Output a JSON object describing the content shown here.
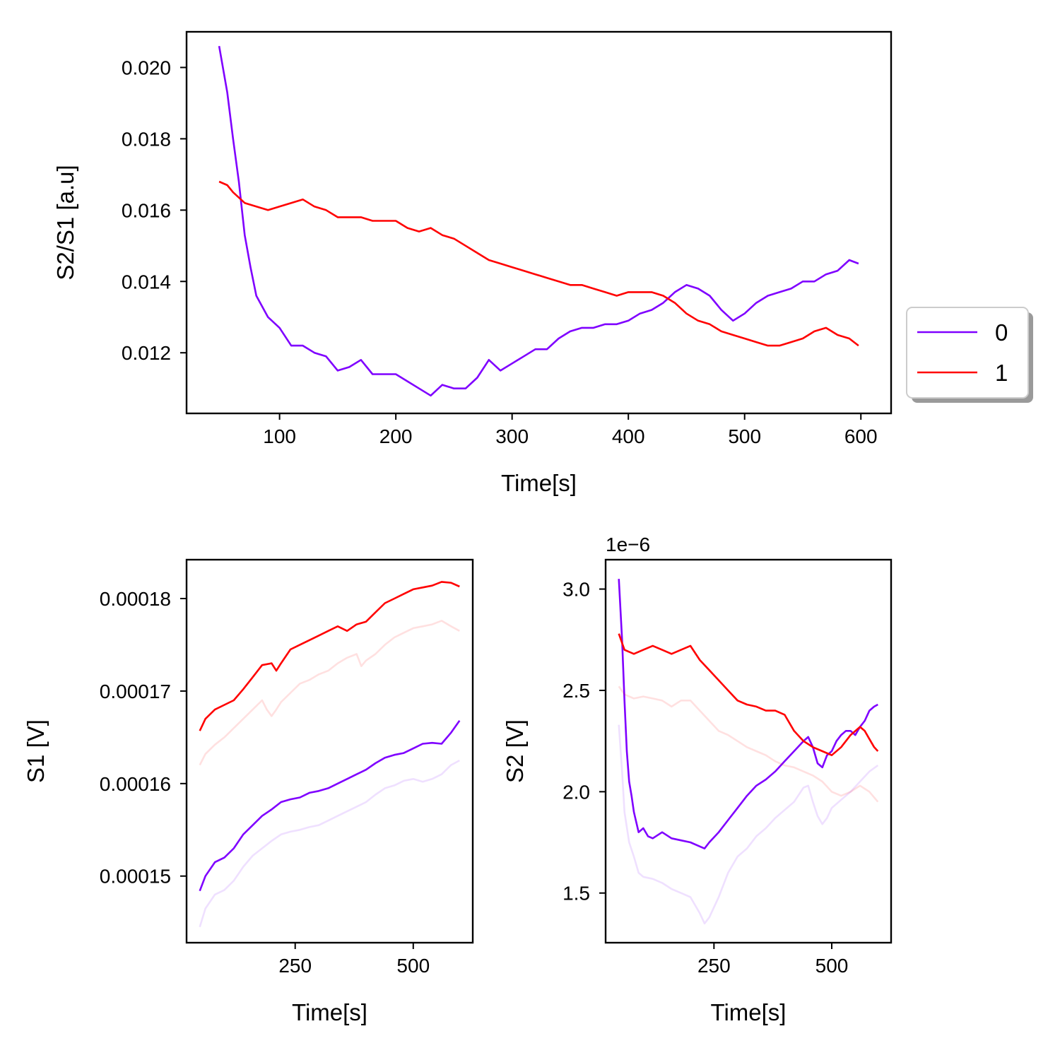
{
  "colors": {
    "series_0": "#7f00ff",
    "series_1": "#ff0000"
  },
  "legend": {
    "placement": "right, outside top panel",
    "entries": [
      "0",
      "1"
    ]
  },
  "chart_data": [
    {
      "type": "line",
      "title": "",
      "xlabel": "Time[s]",
      "ylabel": "S2/S1 [a.u]",
      "xlim": [
        20,
        626
      ],
      "ylim": [
        0.0103,
        0.021
      ],
      "xticks": [
        100,
        200,
        300,
        400,
        500,
        600
      ],
      "xtick_labels": [
        "100",
        "200",
        "300",
        "400",
        "500",
        "600"
      ],
      "yticks": [
        0.012,
        0.014,
        0.016,
        0.018,
        0.02
      ],
      "ytick_labels": [
        "0.012",
        "0.014",
        "0.016",
        "0.018",
        "0.020"
      ],
      "grid": false,
      "series": [
        {
          "name": "0",
          "x": [
            48,
            55,
            60,
            65,
            70,
            75,
            80,
            90,
            100,
            110,
            120,
            130,
            140,
            150,
            160,
            170,
            180,
            190,
            200,
            210,
            220,
            230,
            240,
            250,
            260,
            270,
            280,
            290,
            300,
            310,
            320,
            330,
            340,
            350,
            360,
            370,
            380,
            390,
            400,
            410,
            420,
            430,
            440,
            450,
            460,
            470,
            480,
            490,
            500,
            510,
            520,
            530,
            540,
            550,
            560,
            570,
            580,
            590,
            598
          ],
          "y": [
            0.0206,
            0.0193,
            0.018,
            0.0168,
            0.0153,
            0.0144,
            0.0136,
            0.013,
            0.0127,
            0.0122,
            0.0122,
            0.012,
            0.0119,
            0.0115,
            0.0116,
            0.0118,
            0.0114,
            0.0114,
            0.0114,
            0.0112,
            0.011,
            0.0108,
            0.0111,
            0.011,
            0.011,
            0.0113,
            0.0118,
            0.0115,
            0.0117,
            0.0119,
            0.0121,
            0.0121,
            0.0124,
            0.0126,
            0.0127,
            0.0127,
            0.0128,
            0.0128,
            0.0129,
            0.0131,
            0.0132,
            0.0134,
            0.0137,
            0.0139,
            0.0138,
            0.0136,
            0.0132,
            0.0129,
            0.0131,
            0.0134,
            0.0136,
            0.0137,
            0.0138,
            0.014,
            0.014,
            0.0142,
            0.0143,
            0.0146,
            0.0145
          ]
        },
        {
          "name": "1",
          "x": [
            48,
            55,
            60,
            70,
            80,
            90,
            100,
            110,
            120,
            130,
            140,
            150,
            160,
            170,
            180,
            190,
            200,
            210,
            220,
            230,
            240,
            250,
            260,
            270,
            280,
            290,
            300,
            310,
            320,
            330,
            340,
            350,
            360,
            370,
            380,
            390,
            400,
            410,
            420,
            430,
            440,
            450,
            460,
            470,
            480,
            490,
            500,
            510,
            520,
            530,
            540,
            550,
            560,
            570,
            580,
            590,
            598
          ],
          "y": [
            0.0168,
            0.0167,
            0.0165,
            0.0162,
            0.0161,
            0.016,
            0.0161,
            0.0162,
            0.0163,
            0.0161,
            0.016,
            0.0158,
            0.0158,
            0.0158,
            0.0157,
            0.0157,
            0.0157,
            0.0155,
            0.0154,
            0.0155,
            0.0153,
            0.0152,
            0.015,
            0.0148,
            0.0146,
            0.0145,
            0.0144,
            0.0143,
            0.0142,
            0.0141,
            0.014,
            0.0139,
            0.0139,
            0.0138,
            0.0137,
            0.0136,
            0.0137,
            0.0137,
            0.0137,
            0.0136,
            0.0134,
            0.0131,
            0.0129,
            0.0128,
            0.0126,
            0.0125,
            0.0124,
            0.0123,
            0.0122,
            0.0122,
            0.0123,
            0.0124,
            0.0126,
            0.0127,
            0.0125,
            0.0124,
            0.0122
          ]
        }
      ]
    },
    {
      "type": "line",
      "title": "",
      "xlabel": "Time[s]",
      "ylabel": "S1 [V]",
      "xlim": [
        20,
        626
      ],
      "ylim": [
        0.0001428,
        0.0001842
      ],
      "xticks": [
        250,
        500
      ],
      "xtick_labels": [
        "250",
        "500"
      ],
      "yticks": [
        0.00015,
        0.00016,
        0.00017,
        0.00018
      ],
      "ytick_labels": [
        "0.00015",
        "0.00016",
        "0.00017",
        "0.00018"
      ],
      "grid": false,
      "series": [
        {
          "x": [
            48,
            60,
            80,
            100,
            120,
            140,
            160,
            180,
            200,
            220,
            240,
            260,
            280,
            300,
            320,
            340,
            360,
            380,
            400,
            420,
            440,
            460,
            480,
            500,
            520,
            540,
            560,
            580,
            598
          ],
          "y": [
            0.0001484,
            0.00015,
            0.0001515,
            0.000152,
            0.000153,
            0.0001545,
            0.0001555,
            0.0001565,
            0.0001572,
            0.000158,
            0.0001583,
            0.0001585,
            0.000159,
            0.0001592,
            0.0001595,
            0.00016,
            0.0001605,
            0.000161,
            0.0001615,
            0.0001622,
            0.0001628,
            0.0001631,
            0.0001633,
            0.0001638,
            0.0001643,
            0.0001644,
            0.0001643,
            0.0001655,
            0.0001668
          ],
          "opacity": 1
        },
        {
          "x": [
            48,
            60,
            80,
            100,
            120,
            140,
            160,
            180,
            200,
            220,
            240,
            260,
            280,
            300,
            320,
            340,
            360,
            380,
            400,
            420,
            440,
            460,
            480,
            500,
            520,
            540,
            560,
            580,
            598
          ],
          "y": [
            0.0001445,
            0.0001465,
            0.000148,
            0.0001485,
            0.0001495,
            0.000151,
            0.0001522,
            0.000153,
            0.0001538,
            0.0001545,
            0.0001548,
            0.000155,
            0.0001553,
            0.0001555,
            0.000156,
            0.0001565,
            0.000157,
            0.0001575,
            0.000158,
            0.0001588,
            0.0001595,
            0.0001598,
            0.0001603,
            0.0001605,
            0.0001602,
            0.0001605,
            0.000161,
            0.000162,
            0.0001625
          ],
          "opacity": 0.12
        },
        {
          "x": [
            48,
            60,
            80,
            100,
            120,
            140,
            160,
            180,
            200,
            210,
            220,
            240,
            260,
            280,
            300,
            320,
            340,
            360,
            380,
            400,
            420,
            440,
            460,
            480,
            500,
            520,
            540,
            560,
            580,
            598
          ],
          "y": [
            0.0001657,
            0.000167,
            0.000168,
            0.0001685,
            0.000169,
            0.0001702,
            0.0001715,
            0.0001728,
            0.000173,
            0.0001722,
            0.000173,
            0.0001745,
            0.000175,
            0.0001755,
            0.000176,
            0.0001765,
            0.000177,
            0.0001765,
            0.0001772,
            0.0001775,
            0.0001785,
            0.0001795,
            0.00018,
            0.0001805,
            0.000181,
            0.0001812,
            0.0001814,
            0.0001818,
            0.0001817,
            0.0001813
          ],
          "opacity": 1
        },
        {
          "x": [
            48,
            60,
            80,
            100,
            120,
            140,
            160,
            180,
            190,
            200,
            210,
            220,
            240,
            260,
            280,
            300,
            320,
            340,
            360,
            380,
            390,
            400,
            420,
            440,
            460,
            480,
            500,
            520,
            540,
            560,
            580,
            598
          ],
          "y": [
            0.000162,
            0.0001632,
            0.0001642,
            0.000165,
            0.000166,
            0.000167,
            0.000168,
            0.000169,
            0.000168,
            0.0001673,
            0.000168,
            0.0001688,
            0.0001698,
            0.0001708,
            0.0001712,
            0.0001718,
            0.0001722,
            0.000173,
            0.0001736,
            0.000174,
            0.0001727,
            0.0001733,
            0.000174,
            0.000175,
            0.0001758,
            0.0001763,
            0.0001768,
            0.000177,
            0.0001772,
            0.0001776,
            0.000177,
            0.0001765
          ],
          "opacity": 0.12
        }
      ]
    },
    {
      "type": "line",
      "title": "",
      "offset_text": "1e−6",
      "xlabel": "Time[s]",
      "ylabel": "S2 [V]",
      "xlim": [
        20,
        626
      ],
      "ylim": [
        1.255,
        3.145
      ],
      "xticks": [
        250,
        500
      ],
      "xtick_labels": [
        "250",
        "500"
      ],
      "yticks": [
        1.5,
        2.0,
        2.5,
        3.0
      ],
      "ytick_labels": [
        "1.5",
        "2.0",
        "2.5",
        "3.0"
      ],
      "grid": false,
      "series": [
        {
          "x": [
            48,
            55,
            60,
            65,
            70,
            75,
            80,
            90,
            100,
            110,
            120,
            140,
            160,
            180,
            200,
            220,
            230,
            240,
            260,
            280,
            300,
            320,
            340,
            360,
            380,
            400,
            420,
            440,
            450,
            460,
            470,
            480,
            490,
            500,
            510,
            520,
            530,
            540,
            550,
            560,
            570,
            580,
            590,
            598
          ],
          "y": [
            3.05,
            2.75,
            2.45,
            2.2,
            2.05,
            1.98,
            1.9,
            1.8,
            1.82,
            1.78,
            1.77,
            1.8,
            1.77,
            1.76,
            1.75,
            1.73,
            1.72,
            1.75,
            1.8,
            1.86,
            1.92,
            1.98,
            2.03,
            2.06,
            2.1,
            2.15,
            2.2,
            2.25,
            2.27,
            2.22,
            2.14,
            2.12,
            2.18,
            2.2,
            2.25,
            2.28,
            2.3,
            2.3,
            2.28,
            2.32,
            2.35,
            2.4,
            2.42,
            2.43
          ],
          "opacity": 1
        },
        {
          "x": [
            48,
            55,
            60,
            70,
            80,
            90,
            100,
            120,
            140,
            160,
            180,
            200,
            220,
            230,
            240,
            260,
            280,
            300,
            320,
            340,
            360,
            380,
            400,
            420,
            440,
            450,
            460,
            470,
            480,
            490,
            500,
            520,
            540,
            560,
            580,
            598
          ],
          "y": [
            2.33,
            2.1,
            1.9,
            1.75,
            1.68,
            1.6,
            1.58,
            1.57,
            1.55,
            1.52,
            1.5,
            1.48,
            1.4,
            1.35,
            1.38,
            1.48,
            1.6,
            1.68,
            1.72,
            1.78,
            1.82,
            1.87,
            1.91,
            1.95,
            2.02,
            2.03,
            1.95,
            1.88,
            1.84,
            1.87,
            1.92,
            1.96,
            2.0,
            2.05,
            2.1,
            2.13
          ],
          "opacity": 0.12
        },
        {
          "x": [
            48,
            60,
            80,
            100,
            120,
            140,
            160,
            180,
            200,
            220,
            240,
            260,
            280,
            300,
            320,
            340,
            360,
            380,
            400,
            420,
            440,
            460,
            480,
            500,
            520,
            540,
            560,
            570,
            580,
            590,
            598
          ],
          "y": [
            2.78,
            2.7,
            2.68,
            2.7,
            2.72,
            2.7,
            2.68,
            2.7,
            2.72,
            2.65,
            2.6,
            2.55,
            2.5,
            2.45,
            2.43,
            2.42,
            2.4,
            2.4,
            2.38,
            2.3,
            2.25,
            2.22,
            2.2,
            2.18,
            2.22,
            2.28,
            2.32,
            2.3,
            2.26,
            2.22,
            2.2
          ],
          "opacity": 1
        },
        {
          "x": [
            48,
            60,
            80,
            100,
            120,
            140,
            160,
            180,
            200,
            220,
            240,
            260,
            280,
            300,
            320,
            340,
            360,
            380,
            400,
            420,
            440,
            460,
            480,
            500,
            520,
            540,
            560,
            580,
            598
          ],
          "y": [
            2.52,
            2.48,
            2.46,
            2.47,
            2.46,
            2.45,
            2.42,
            2.45,
            2.45,
            2.4,
            2.35,
            2.3,
            2.28,
            2.25,
            2.22,
            2.2,
            2.18,
            2.15,
            2.13,
            2.12,
            2.1,
            2.08,
            2.05,
            2.0,
            1.98,
            2.0,
            2.03,
            2.0,
            1.95
          ],
          "opacity": 0.12
        }
      ]
    }
  ]
}
